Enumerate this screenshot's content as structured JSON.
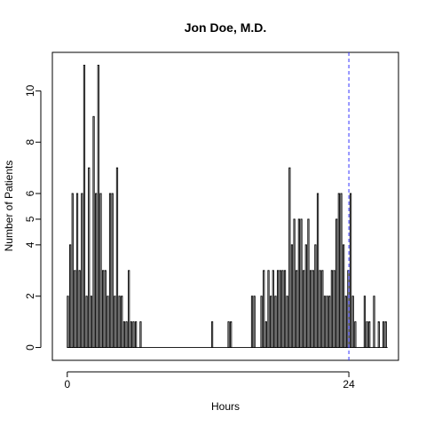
{
  "chart_data": {
    "type": "bar",
    "title": "Jon Doe, M.D.",
    "xlabel": "Hours",
    "ylabel": "Number of Patients",
    "x_ticks": [
      0,
      24
    ],
    "y_ticks": [
      0,
      2,
      4,
      5,
      6,
      8,
      10
    ],
    "xlim": [
      -1.27,
      28.23
    ],
    "ylim": [
      -0.5,
      11.5
    ],
    "bin_width": 0.1,
    "reference_line": {
      "x": 24,
      "color": "#3333ff",
      "style": "dashed"
    },
    "grid": false,
    "legend": "none",
    "bar_stroke_color": "#000000",
    "bar_fill_color": "#ffffff",
    "bars": [
      {
        "x": 0.0,
        "y": 2
      },
      {
        "x": 0.2,
        "y": 4
      },
      {
        "x": 0.4,
        "y": 6
      },
      {
        "x": 0.6,
        "y": 3
      },
      {
        "x": 0.8,
        "y": 6
      },
      {
        "x": 1.0,
        "y": 3
      },
      {
        "x": 1.2,
        "y": 6
      },
      {
        "x": 1.4,
        "y": 11
      },
      {
        "x": 1.6,
        "y": 2
      },
      {
        "x": 1.8,
        "y": 7
      },
      {
        "x": 2.0,
        "y": 2
      },
      {
        "x": 2.2,
        "y": 9
      },
      {
        "x": 2.4,
        "y": 6
      },
      {
        "x": 2.6,
        "y": 11
      },
      {
        "x": 2.8,
        "y": 6
      },
      {
        "x": 3.0,
        "y": 3
      },
      {
        "x": 3.2,
        "y": 3
      },
      {
        "x": 3.4,
        "y": 2
      },
      {
        "x": 3.6,
        "y": 6
      },
      {
        "x": 3.8,
        "y": 6
      },
      {
        "x": 4.0,
        "y": 2
      },
      {
        "x": 4.2,
        "y": 7
      },
      {
        "x": 4.4,
        "y": 2
      },
      {
        "x": 4.6,
        "y": 2
      },
      {
        "x": 4.8,
        "y": 1
      },
      {
        "x": 5.0,
        "y": 1
      },
      {
        "x": 5.2,
        "y": 3
      },
      {
        "x": 5.4,
        "y": 1
      },
      {
        "x": 5.6,
        "y": 1
      },
      {
        "x": 5.8,
        "y": 1
      },
      {
        "x": 6.2,
        "y": 1
      },
      {
        "x": 12.3,
        "y": 1
      },
      {
        "x": 13.7,
        "y": 1
      },
      {
        "x": 13.9,
        "y": 1
      },
      {
        "x": 15.7,
        "y": 2
      },
      {
        "x": 15.9,
        "y": 2
      },
      {
        "x": 16.5,
        "y": 2
      },
      {
        "x": 16.7,
        "y": 3
      },
      {
        "x": 16.9,
        "y": 1
      },
      {
        "x": 17.1,
        "y": 3
      },
      {
        "x": 17.3,
        "y": 2
      },
      {
        "x": 17.5,
        "y": 3
      },
      {
        "x": 17.7,
        "y": 2
      },
      {
        "x": 17.9,
        "y": 3
      },
      {
        "x": 18.1,
        "y": 3
      },
      {
        "x": 18.3,
        "y": 3
      },
      {
        "x": 18.5,
        "y": 3
      },
      {
        "x": 18.7,
        "y": 2
      },
      {
        "x": 18.9,
        "y": 7
      },
      {
        "x": 19.1,
        "y": 4
      },
      {
        "x": 19.3,
        "y": 5
      },
      {
        "x": 19.5,
        "y": 3
      },
      {
        "x": 19.7,
        "y": 5
      },
      {
        "x": 19.9,
        "y": 5
      },
      {
        "x": 20.1,
        "y": 3
      },
      {
        "x": 20.3,
        "y": 4
      },
      {
        "x": 20.5,
        "y": 5
      },
      {
        "x": 20.7,
        "y": 3
      },
      {
        "x": 20.9,
        "y": 3
      },
      {
        "x": 21.1,
        "y": 4
      },
      {
        "x": 21.3,
        "y": 6
      },
      {
        "x": 21.5,
        "y": 3
      },
      {
        "x": 21.7,
        "y": 3
      },
      {
        "x": 21.9,
        "y": 2
      },
      {
        "x": 22.1,
        "y": 2
      },
      {
        "x": 22.3,
        "y": 2
      },
      {
        "x": 22.5,
        "y": 3
      },
      {
        "x": 22.7,
        "y": 3
      },
      {
        "x": 22.9,
        "y": 5
      },
      {
        "x": 23.1,
        "y": 6
      },
      {
        "x": 23.3,
        "y": 6
      },
      {
        "x": 23.5,
        "y": 4
      },
      {
        "x": 23.7,
        "y": 2
      },
      {
        "x": 23.9,
        "y": 3
      },
      {
        "x": 24.1,
        "y": 6
      },
      {
        "x": 24.3,
        "y": 2
      },
      {
        "x": 24.5,
        "y": 1
      },
      {
        "x": 25.3,
        "y": 2
      },
      {
        "x": 25.5,
        "y": 1
      },
      {
        "x": 25.7,
        "y": 1
      },
      {
        "x": 26.1,
        "y": 2
      },
      {
        "x": 26.5,
        "y": 1
      },
      {
        "x": 26.9,
        "y": 1
      },
      {
        "x": 27.1,
        "y": 1
      }
    ]
  }
}
